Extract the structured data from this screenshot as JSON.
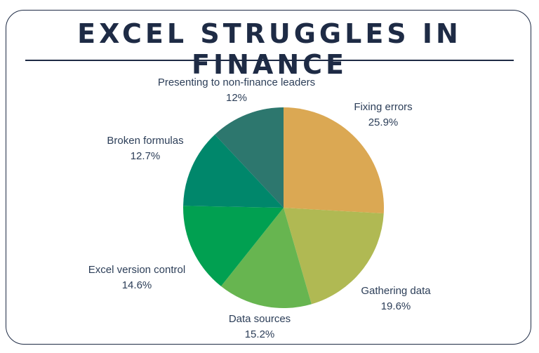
{
  "title": "EXCEL STRUGGLES IN FINANCE",
  "chart_data": {
    "type": "pie",
    "title": "EXCEL STRUGGLES IN FINANCE",
    "slices": [
      {
        "label": "Fixing errors",
        "value": 25.9,
        "value_text": "25.9%",
        "color": "#dba853"
      },
      {
        "label": "Gathering data",
        "value": 19.6,
        "value_text": "19.6%",
        "color": "#b0b953"
      },
      {
        "label": "Data sources",
        "value": 15.2,
        "value_text": "15.2%",
        "color": "#67b550"
      },
      {
        "label": "Excel version control",
        "value": 14.6,
        "value_text": "14.6%",
        "color": "#01a051"
      },
      {
        "label": "Broken formulas",
        "value": 12.7,
        "value_text": "12.7%",
        "color": "#00876b"
      },
      {
        "label": "Presenting to non-finance leaders",
        "value": 12,
        "value_text": "12%",
        "color": "#2d776e"
      }
    ],
    "start": "12 o'clock",
    "direction": "clockwise",
    "legend": "none (labels next to slices)"
  }
}
